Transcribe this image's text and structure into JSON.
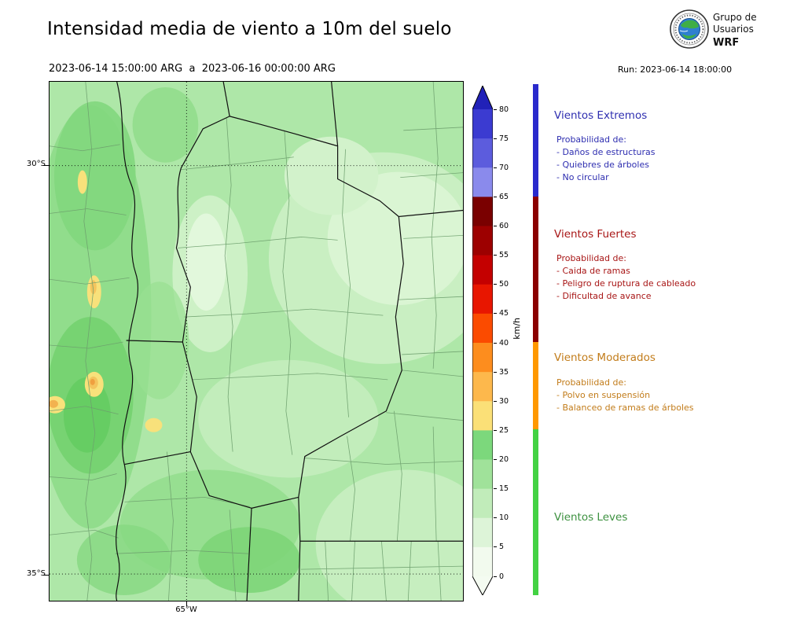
{
  "header": {
    "title": "Intensidad media de viento a 10m del suelo",
    "period": "2023-06-14 15:00:00 ARG  a  2023-06-16 00:00:00 ARG",
    "run": "Run: 2023-06-14 18:00:00",
    "logo_text": [
      "Grupo de",
      "Usuarios",
      "WRF"
    ]
  },
  "map": {
    "lat_labels": [
      "30°S",
      "35°S"
    ],
    "lon_label": "65°W"
  },
  "colorbar": {
    "unit": "km/h",
    "max": 80,
    "ticks": [
      0,
      5,
      10,
      15,
      20,
      25,
      30,
      35,
      40,
      45,
      50,
      55,
      60,
      65,
      70,
      75,
      80
    ],
    "over_color": "#2121b8",
    "under_color": "#f4fbf1",
    "segments": [
      {
        "from": 0,
        "to": 5,
        "color": "#f2faee"
      },
      {
        "from": 5,
        "to": 10,
        "color": "#ddf4d8"
      },
      {
        "from": 10,
        "to": 15,
        "color": "#c1ecba"
      },
      {
        "from": 15,
        "to": 20,
        "color": "#a0e29a"
      },
      {
        "from": 20,
        "to": 25,
        "color": "#7cd87c"
      },
      {
        "from": 25,
        "to": 30,
        "color": "#fbe077"
      },
      {
        "from": 30,
        "to": 35,
        "color": "#fdb84c"
      },
      {
        "from": 35,
        "to": 40,
        "color": "#fd8d1e"
      },
      {
        "from": 40,
        "to": 45,
        "color": "#fb4b00"
      },
      {
        "from": 45,
        "to": 50,
        "color": "#e81600"
      },
      {
        "from": 50,
        "to": 55,
        "color": "#c40000"
      },
      {
        "from": 55,
        "to": 60,
        "color": "#9d0000"
      },
      {
        "from": 60,
        "to": 65,
        "color": "#7a0000"
      },
      {
        "from": 65,
        "to": 70,
        "color": "#8a8aec"
      },
      {
        "from": 70,
        "to": 75,
        "color": "#5c5cdd"
      },
      {
        "from": 75,
        "to": 80,
        "color": "#3b3bd1"
      }
    ]
  },
  "legend": {
    "sections": [
      {
        "title": "Vientos Extremos",
        "text_color": "#2e2eb0",
        "bar_color": "#2a2acc",
        "lines": [
          "Probabilidad de:",
          "- Daños de estructuras",
          "- Quiebres de árboles",
          "- No circular"
        ]
      },
      {
        "title": "Vientos Fuertes",
        "text_color": "#a81616",
        "bar_color": "#8b0000",
        "lines": [
          "Probabilidad de:",
          "- Caida de ramas",
          "- Peligro de ruptura de cableado",
          "- Dificultad de avance"
        ]
      },
      {
        "title": "Vientos Moderados",
        "text_color": "#c27c1a",
        "bar_color": "#ff9800",
        "lines": [
          "Probabilidad de:",
          "- Polvo en suspensión",
          "- Balanceo de ramas de árboles"
        ]
      },
      {
        "title": "Vientos Leves",
        "text_color": "#3d9140",
        "bar_color": "#43d243",
        "lines": []
      }
    ]
  },
  "chart_data": {
    "type": "heatmap",
    "title": "Intensidad media de viento a 10m del suelo",
    "valid_period": "2023-06-14 15:00:00 ARG a 2023-06-16 00:00:00 ARG",
    "model_run": "Run: 2023-06-14 18:00:00",
    "unit": "km/h",
    "colorbar_range": [
      0,
      80
    ],
    "colorbar_step": 5,
    "lat_ticks": [
      "30°S",
      "35°S"
    ],
    "lon_ticks": [
      "65°W"
    ],
    "categories": [
      {
        "name": "Vientos Leves",
        "range_kmh": [
          0,
          25
        ],
        "color_family": "green"
      },
      {
        "name": "Vientos Moderados",
        "range_kmh": [
          25,
          40
        ],
        "color_family": "orange"
      },
      {
        "name": "Vientos Fuertes",
        "range_kmh": [
          40,
          65
        ],
        "color_family": "red"
      },
      {
        "name": "Vientos Extremos",
        "range_kmh": [
          65,
          80
        ],
        "color_family": "blue"
      }
    ],
    "map_summary": "Mostly 5-25 km/h (light greens) across the region; isolated 25-35 km/h spots (yellow/orange) along the western mountains"
  }
}
